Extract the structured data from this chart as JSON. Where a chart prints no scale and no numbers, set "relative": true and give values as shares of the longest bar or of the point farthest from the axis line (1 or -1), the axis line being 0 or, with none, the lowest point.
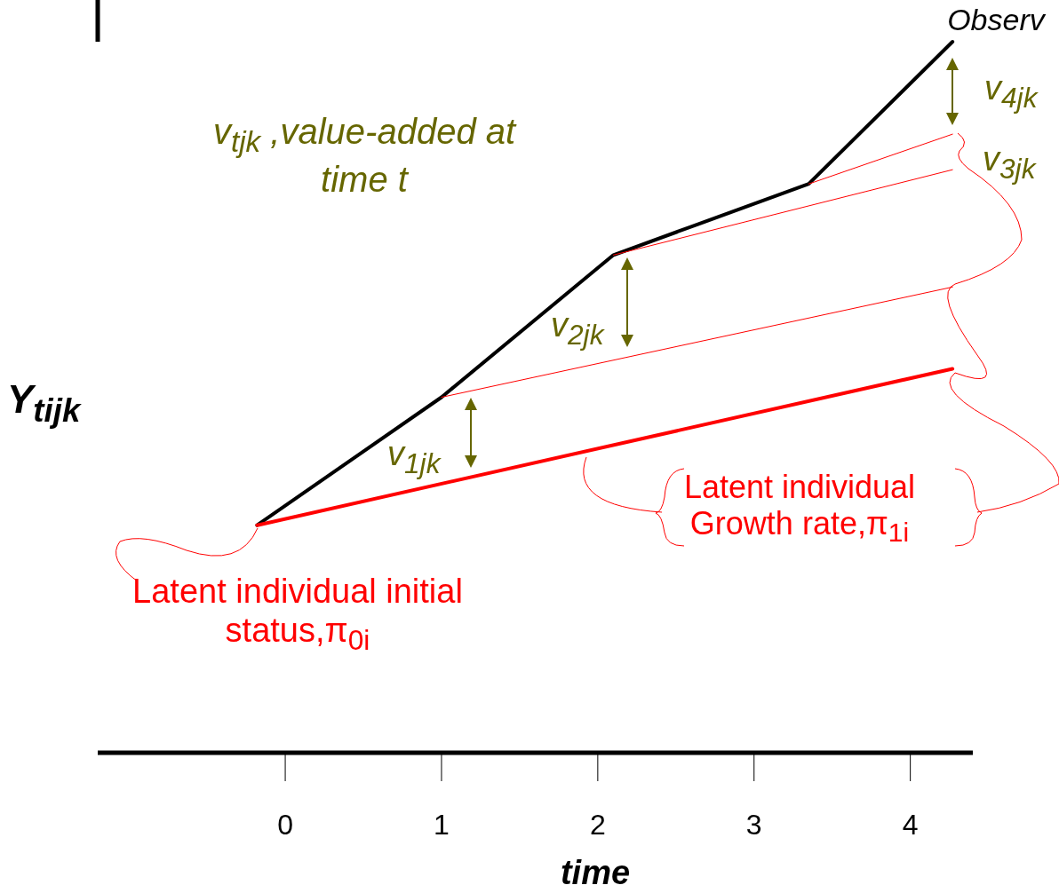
{
  "chart_data": {
    "type": "line",
    "relative": true,
    "xlabel": "time",
    "ylabel": "Y$_{tijk}$",
    "xlim": [
      -1.2,
      4.4
    ],
    "xticks": [
      0,
      1,
      2,
      3,
      4
    ],
    "marker": "none",
    "line_style": "solid",
    "series": [
      {
        "name": "Observ",
        "color": "#000000",
        "x": [
          -0.18,
          1,
          2.1,
          3.35,
          4.27
        ],
        "values": [
          0.32,
          0.5,
          0.7,
          0.8,
          1
        ]
      },
      {
        "color": "#ff0000",
        "x": [
          -0.18,
          4.27
        ],
        "values": [
          0.32,
          0.54
        ]
      },
      {
        "color": "#ff0000",
        "x": [
          1,
          4.27
        ],
        "values": [
          0.5,
          0.655
        ]
      },
      {
        "color": "#ff0000",
        "x": [
          2.1,
          4.27
        ],
        "values": [
          0.7,
          0.82
        ]
      },
      {
        "color": "#ff0000",
        "x": [
          3.35,
          4.27
        ],
        "values": [
          0.8,
          0.87
        ]
      }
    ],
    "annotations": [
      "v$_{tjk}$ ,value-added at time t",
      "v$_{1jk}$",
      "v$_{2jk}$",
      "v$_{3jk}$",
      "v$_{4jk}$",
      "Latent individual initial status,π$_{0i}$",
      "Latent individual Growth rate,π$_{1i}$"
    ]
  }
}
